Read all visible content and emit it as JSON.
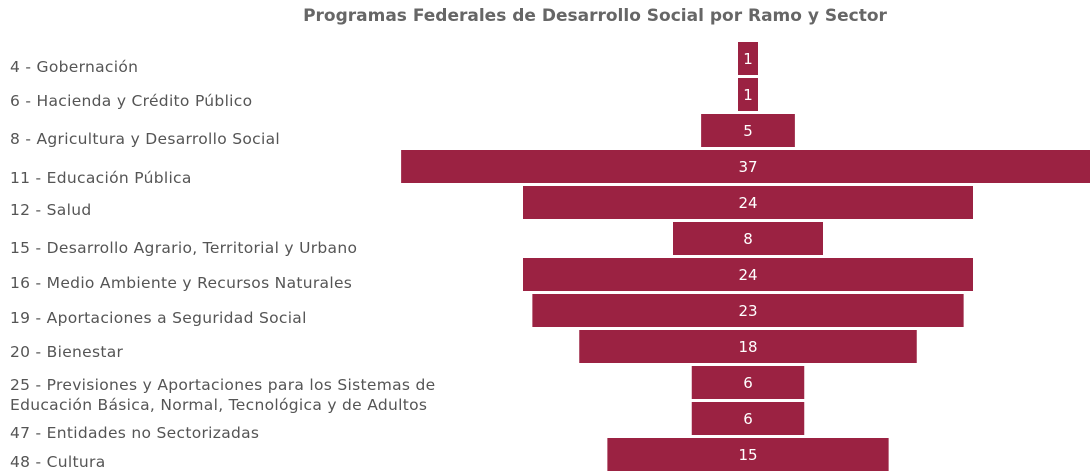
{
  "chart_data": {
    "type": "funnel",
    "title": "Programas Federales de Desarrollo Social por Ramo y Sector",
    "categories": [
      "4 - Gobernación",
      "6 - Hacienda y Crédito Público",
      "8 - Agricultura y Desarrollo Social",
      "11 - Educación Pública",
      "12 - Salud",
      "15 - Desarrollo Agrario, Territorial y Urbano",
      "16 - Medio Ambiente y Recursos Naturales",
      "19 - Aportaciones a Seguridad Social",
      "20 - Bienestar",
      "25 - Previsiones y Aportaciones para los Sistemas de\nEducación Básica, Normal, Tecnológica y de Adultos",
      "47 - Entidades no Sectorizadas",
      "48 - Cultura"
    ],
    "values": [
      1,
      1,
      5,
      37,
      24,
      8,
      24,
      23,
      18,
      6,
      6,
      15
    ],
    "color": "#9b2242"
  }
}
